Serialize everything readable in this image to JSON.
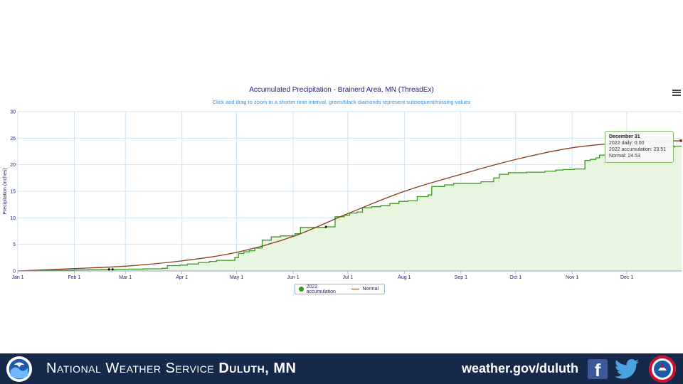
{
  "chart_data": {
    "type": "area",
    "title": "Accumulated Precipitation - Brainerd Area, MN (ThreadEx)",
    "subtitle": "Click and drag to zoom to a shorter time interval, green/black diamonds represent subsequent/missing values",
    "ylabel": "Precipitation (inches)",
    "xlabel": "",
    "ylim": [
      0,
      30
    ],
    "xlim": [
      1,
      365
    ],
    "grid": true,
    "legend_position": "bottom-center",
    "x_tick_labels": [
      "Jan 1",
      "Feb 1",
      "Mar 1",
      "Apr 1",
      "May 1",
      "Jun 1",
      "Jul 1",
      "Aug 1",
      "Sep 1",
      "Oct 1",
      "Nov 1",
      "Dec 1"
    ],
    "x_tick_days": [
      1,
      32,
      60,
      91,
      121,
      152,
      182,
      213,
      244,
      274,
      305,
      335
    ],
    "y_ticks": [
      0,
      5,
      10,
      15,
      20,
      25,
      30
    ],
    "series": [
      {
        "name": "2022 accumulation",
        "color": "#3a9a1e",
        "fill": "#e8f5e1",
        "step": true,
        "x": [
          1,
          5,
          10,
          20,
          32,
          40,
          47,
          55,
          62,
          70,
          80,
          83,
          90,
          94,
          100,
          106,
          110,
          120,
          122,
          125,
          128,
          131,
          135,
          140,
          145,
          150,
          153,
          156,
          160,
          165,
          170,
          172,
          175,
          180,
          183,
          187,
          190,
          195,
          200,
          205,
          210,
          215,
          220,
          226,
          228,
          235,
          240,
          245,
          255,
          262,
          265,
          270,
          280,
          290,
          296,
          300,
          306,
          312,
          315,
          318,
          320,
          325,
          330,
          340,
          355,
          361,
          365
        ],
        "values": [
          0,
          0.05,
          0.1,
          0.15,
          0.2,
          0.25,
          0.3,
          0.32,
          0.35,
          0.4,
          0.5,
          1.0,
          1.1,
          1.3,
          1.6,
          1.8,
          2.0,
          2.5,
          3.3,
          3.6,
          3.8,
          4.3,
          5.8,
          6.4,
          6.6,
          6.6,
          7.0,
          8.2,
          8.2,
          8.2,
          8.3,
          8.3,
          10.2,
          10.5,
          10.9,
          11.1,
          11.9,
          12.1,
          12.3,
          12.7,
          13.1,
          13.2,
          14.0,
          14.3,
          15.9,
          16.2,
          16.5,
          16.5,
          16.8,
          17.5,
          18.2,
          18.5,
          18.6,
          18.8,
          19.0,
          19.1,
          19.2,
          20.8,
          21.0,
          21.3,
          21.8,
          22.3,
          22.7,
          23.2,
          23.3,
          23.5,
          23.51
        ],
        "missing_x": [
          51,
          53,
          170
        ]
      },
      {
        "name": "Normal",
        "color": "#8a3b1e",
        "step": false,
        "x": [
          1,
          32,
          60,
          91,
          121,
          152,
          182,
          213,
          244,
          274,
          305,
          335,
          365
        ],
        "values": [
          0,
          0.45,
          0.9,
          1.9,
          3.5,
          6.5,
          10.8,
          15.0,
          18.2,
          21.0,
          23.2,
          24.2,
          24.53
        ]
      }
    ],
    "tooltip": {
      "title": "December 31",
      "line1": "2022 daily: 0.00",
      "line2": "2022 accumulation: 23.51",
      "line3": "Normal: 24.53"
    }
  },
  "footer": {
    "org_name_regular": "National Weather Service",
    "org_name_bold": "Duluth, MN",
    "url": "weather.gov/duluth",
    "facebook_letter": "f",
    "logo_left": "noaa-logo-icon",
    "logo_right": "nws-logo-icon",
    "bg_color": "#16294a"
  }
}
